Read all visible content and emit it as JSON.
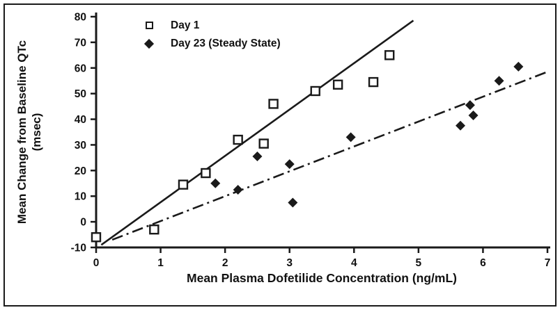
{
  "figure": {
    "background": "#ffffff",
    "border_color": "#1a1a1a"
  },
  "chart_data": {
    "type": "scatter",
    "title": "",
    "xlabel": "Mean Plasma Dofetilide Concentration (ng/mL)",
    "ylabel": "Mean Change from Baseline QTc",
    "ylabel_units": "(msec)",
    "xlim": [
      0,
      7
    ],
    "ylim": [
      -10,
      80
    ],
    "xticks": [
      0,
      1,
      2,
      3,
      4,
      5,
      6,
      7
    ],
    "yticks": [
      -10,
      0,
      10,
      20,
      30,
      40,
      50,
      60,
      70,
      80
    ],
    "grid": false,
    "legend_position": "top-left-inside",
    "series": [
      {
        "name": "Day 1",
        "marker": "open-square",
        "line": "solid",
        "color": "#1a1a1a",
        "points": [
          [
            0.0,
            -6
          ],
          [
            0.9,
            -3
          ],
          [
            1.35,
            14.5
          ],
          [
            1.7,
            19
          ],
          [
            2.2,
            32
          ],
          [
            2.6,
            30.5
          ],
          [
            2.75,
            46
          ],
          [
            3.4,
            51
          ],
          [
            3.75,
            53.5
          ],
          [
            4.3,
            54.5
          ],
          [
            4.55,
            65
          ]
        ],
        "trend": [
          0.08,
          -9,
          4.92,
          78.5
        ]
      },
      {
        "name": "Day 23 (Steady State)",
        "marker": "filled-diamond",
        "line": "dash-dot",
        "color": "#1a1a1a",
        "points": [
          [
            1.85,
            15
          ],
          [
            2.2,
            12.5
          ],
          [
            2.5,
            25.5
          ],
          [
            3.0,
            22.5
          ],
          [
            3.05,
            7.5
          ],
          [
            3.95,
            33
          ],
          [
            5.65,
            37.5
          ],
          [
            5.8,
            45.5
          ],
          [
            5.85,
            41.5
          ],
          [
            6.25,
            55
          ],
          [
            6.55,
            60.5
          ]
        ],
        "trend": [
          0.25,
          -7,
          7.0,
          58.5
        ]
      }
    ]
  }
}
